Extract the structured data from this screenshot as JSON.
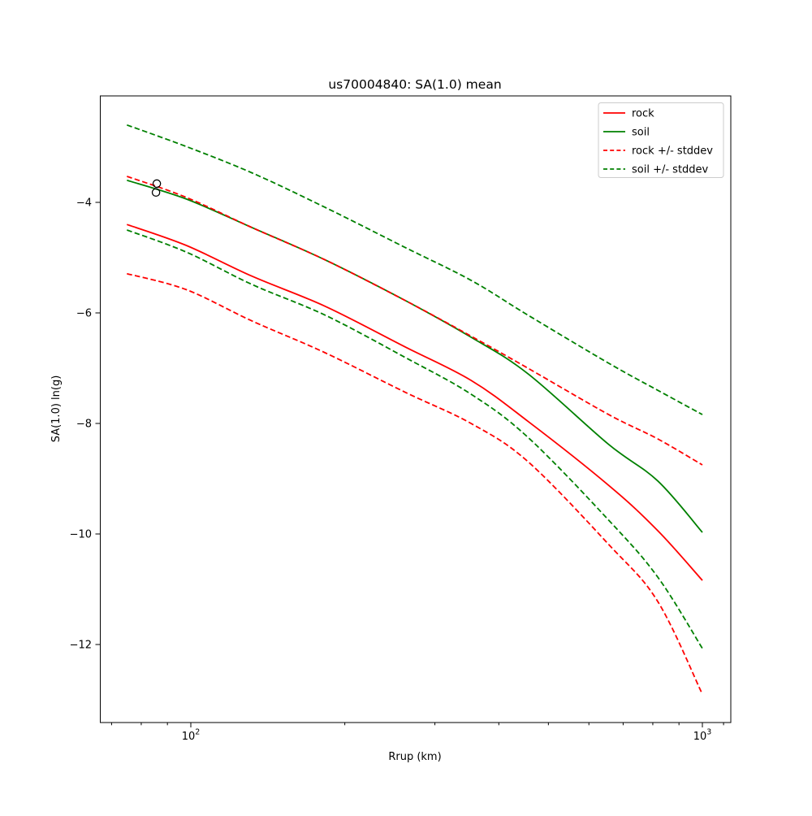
{
  "title": "us70004840: SA(1.0) mean",
  "colors": {
    "rock": "#ff0000",
    "soil": "#008000",
    "marker": "#000000"
  },
  "axes": {
    "x": {
      "label": "Rrup (km)",
      "scale": "log",
      "lim": [
        66.5,
        1137
      ],
      "major_ticks": [
        {
          "base": "10",
          "exp": "2",
          "value": 100
        },
        {
          "base": "10",
          "exp": "3",
          "value": 1000
        }
      ],
      "minor_tick_values": [
        70,
        80,
        90,
        200,
        300,
        400,
        500,
        600,
        700,
        800,
        900,
        1100
      ]
    },
    "y": {
      "label": "SA(1.0) ln(g)",
      "scale": "linear",
      "lim": [
        -13.42,
        -2.08
      ],
      "tick_values": [
        -4,
        -6,
        -8,
        -10,
        -12
      ],
      "tick_labels": [
        "−4",
        "−6",
        "−8",
        "−10",
        "−12"
      ]
    }
  },
  "legend": {
    "items": [
      {
        "label": "rock",
        "color": "#ff0000",
        "dash": false
      },
      {
        "label": "soil",
        "color": "#008000",
        "dash": false
      },
      {
        "label": "rock +/- stddev",
        "color": "#ff0000",
        "dash": true
      },
      {
        "label": "soil +/- stddev",
        "color": "#008000",
        "dash": true
      }
    ]
  },
  "chart_data": {
    "type": "line",
    "title": "us70004840: SA(1.0) mean",
    "xlabel": "Rrup (km)",
    "ylabel": "SA(1.0) ln(g)",
    "xscale": "log",
    "xlim": [
      66.5,
      1137
    ],
    "ylim": [
      -13.42,
      -2.08
    ],
    "grid": false,
    "legend_position": "upper right",
    "x": [
      75,
      98,
      132,
      183,
      263,
      353,
      456,
      656,
      818,
      1000
    ],
    "series": [
      {
        "name": "rock",
        "color": "#ff0000",
        "style": "solid",
        "values": [
          -4.4,
          -4.78,
          -5.34,
          -5.88,
          -6.62,
          -7.22,
          -7.96,
          -9.12,
          -9.94,
          -10.84
        ]
      },
      {
        "name": "soil",
        "color": "#008000",
        "style": "solid",
        "values": [
          -3.6,
          -3.94,
          -4.46,
          -5.04,
          -5.78,
          -6.44,
          -7.1,
          -8.38,
          -9.04,
          -9.97
        ]
      },
      {
        "name": "rock plus stddev",
        "color": "#ff0000",
        "style": "dashed",
        "values": [
          -3.53,
          -3.91,
          -4.46,
          -5.04,
          -5.78,
          -6.42,
          -7.0,
          -7.84,
          -8.28,
          -8.75
        ]
      },
      {
        "name": "rock minus stddev",
        "color": "#ff0000",
        "style": "dashed",
        "values": [
          -5.29,
          -5.58,
          -6.15,
          -6.72,
          -7.44,
          -8.0,
          -8.69,
          -10.19,
          -11.22,
          -12.9
        ]
      },
      {
        "name": "soil plus stddev",
        "color": "#008000",
        "style": "dashed",
        "values": [
          -2.6,
          -2.99,
          -3.47,
          -4.09,
          -4.82,
          -5.41,
          -6.04,
          -6.91,
          -7.4,
          -7.84
        ]
      },
      {
        "name": "soil minus stddev",
        "color": "#008000",
        "style": "dashed",
        "values": [
          -4.5,
          -4.9,
          -5.49,
          -6.04,
          -6.81,
          -7.47,
          -8.25,
          -9.75,
          -10.78,
          -12.07
        ]
      }
    ],
    "points": [
      {
        "x": 85.8,
        "y": -3.66
      },
      {
        "x": 85.5,
        "y": -3.82
      }
    ]
  }
}
